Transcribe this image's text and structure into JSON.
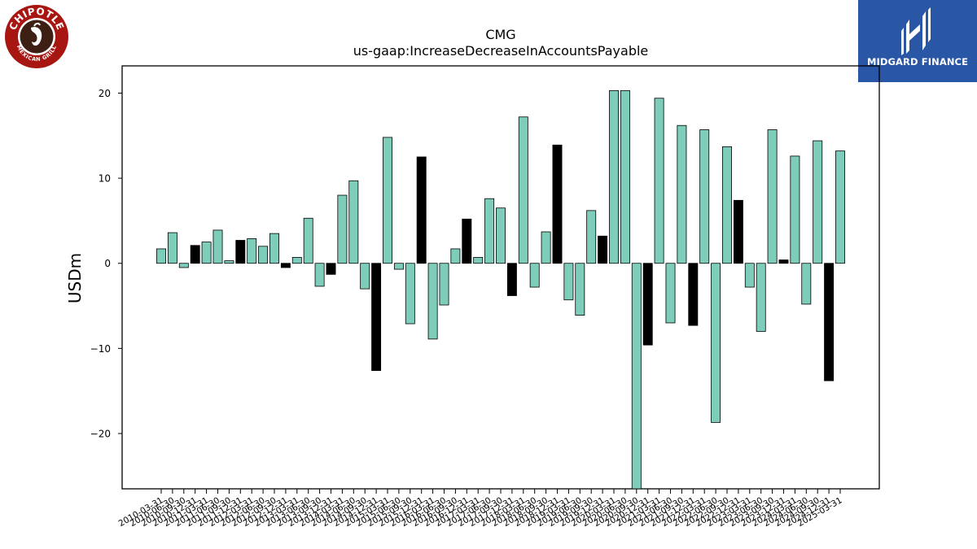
{
  "brand_left": {
    "logo": "chipotle-mexican-grill-logo",
    "text_top": "CHIPOTLE",
    "text_bottom": "MEXICAN GRILL"
  },
  "brand_right": {
    "logo": "midgard-finance-logo",
    "name": "MIDGARD FINANCE",
    "color": "#2a56a6"
  },
  "chart_data": {
    "type": "bar",
    "title": "CMG",
    "subtitle": "us-gaap:IncreaseDecreaseInAccountsPayable",
    "ylabel": "USDm",
    "xlabel": "",
    "ylim": [
      -26.5,
      23.2
    ],
    "yticks": [
      -20,
      -10,
      0,
      10,
      20
    ],
    "grid": false,
    "colors": {
      "default": "#7ecdbb",
      "q4": "#000000",
      "edge": "#000000"
    },
    "categories": [
      "2010-03-31",
      "2010-06-30",
      "2010-09-30",
      "2010-12-31",
      "2011-03-31",
      "2011-06-30",
      "2011-09-30",
      "2011-12-31",
      "2012-03-31",
      "2012-06-30",
      "2012-09-30",
      "2012-12-31",
      "2013-03-31",
      "2013-06-30",
      "2013-09-30",
      "2013-12-31",
      "2014-03-31",
      "2014-06-30",
      "2014-09-30",
      "2014-12-31",
      "2015-03-31",
      "2015-06-30",
      "2015-09-30",
      "2015-12-31",
      "2016-03-31",
      "2016-06-30",
      "2016-09-30",
      "2016-12-31",
      "2017-03-31",
      "2017-06-30",
      "2017-09-30",
      "2017-12-31",
      "2018-03-31",
      "2018-06-30",
      "2018-09-30",
      "2018-12-31",
      "2019-03-31",
      "2019-06-30",
      "2019-09-30",
      "2019-12-31",
      "2020-03-31",
      "2020-06-30",
      "2020-09-30",
      "2020-12-31",
      "2021-03-31",
      "2021-06-30",
      "2021-09-30",
      "2021-12-31",
      "2022-03-31",
      "2022-06-30",
      "2022-09-30",
      "2022-12-31",
      "2023-03-31",
      "2023-06-30",
      "2023-09-30",
      "2023-12-31",
      "2024-03-31",
      "2024-06-30",
      "2024-09-30",
      "2024-12-31",
      "2025-03-31"
    ],
    "values": [
      1.7,
      3.6,
      -0.5,
      2.1,
      2.5,
      3.9,
      0.3,
      2.7,
      2.9,
      2.0,
      3.5,
      -0.5,
      0.7,
      5.3,
      -2.7,
      -1.3,
      8.0,
      9.7,
      -3.0,
      -12.6,
      14.8,
      -0.7,
      -7.1,
      12.5,
      -8.9,
      -4.9,
      1.7,
      5.2,
      0.7,
      7.6,
      6.5,
      -3.8,
      17.2,
      -2.8,
      3.7,
      13.9,
      -4.3,
      -6.1,
      6.2,
      3.2,
      20.3,
      20.3,
      -26.5,
      -9.6,
      19.4,
      -7.0,
      16.2,
      -7.3,
      15.7,
      -18.7,
      13.7,
      7.4,
      -2.8,
      -8.0,
      15.7,
      0.4,
      12.6,
      -4.8,
      14.4,
      -13.8,
      13.2
    ]
  }
}
